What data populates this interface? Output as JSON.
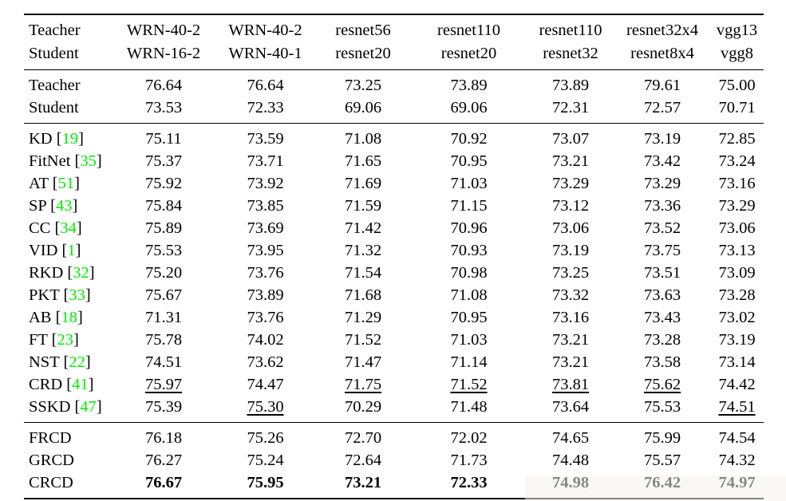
{
  "colors": {
    "citation_green": "#00ee00",
    "text": "#000000",
    "background": "#ffffff"
  },
  "table": {
    "header": {
      "row1_label": "Teacher",
      "row2_label": "Student",
      "columns": [
        {
          "teacher": "WRN-40-2",
          "student": "WRN-16-2"
        },
        {
          "teacher": "WRN-40-2",
          "student": "WRN-40-1"
        },
        {
          "teacher": "resnet56",
          "student": "resnet20"
        },
        {
          "teacher": "resnet110",
          "student": "resnet20"
        },
        {
          "teacher": "resnet110",
          "student": "resnet32"
        },
        {
          "teacher": "resnet32x4",
          "student": "resnet8x4"
        },
        {
          "teacher": "vgg13",
          "student": "vgg8"
        }
      ]
    },
    "baseline_rows": [
      {
        "label": "Teacher",
        "values": [
          "76.64",
          "76.64",
          "73.25",
          "73.89",
          "73.89",
          "79.61",
          "75.00"
        ]
      },
      {
        "label": "Student",
        "values": [
          "73.53",
          "72.33",
          "69.06",
          "69.06",
          "72.31",
          "72.57",
          "70.71"
        ]
      }
    ],
    "method_rows": [
      {
        "label": "KD",
        "cite": "19",
        "values": [
          "75.11",
          "73.59",
          "71.08",
          "70.92",
          "73.07",
          "73.19",
          "72.85"
        ],
        "underline": []
      },
      {
        "label": "FitNet",
        "cite": "35",
        "values": [
          "75.37",
          "73.71",
          "71.65",
          "70.95",
          "73.21",
          "73.42",
          "73.24"
        ],
        "underline": []
      },
      {
        "label": "AT",
        "cite": "51",
        "values": [
          "75.92",
          "73.92",
          "71.69",
          "71.03",
          "73.29",
          "73.29",
          "73.16"
        ],
        "underline": []
      },
      {
        "label": "SP",
        "cite": "43",
        "values": [
          "75.84",
          "73.85",
          "71.59",
          "71.15",
          "73.12",
          "73.36",
          "73.29"
        ],
        "underline": []
      },
      {
        "label": "CC",
        "cite": "34",
        "values": [
          "75.89",
          "73.69",
          "71.42",
          "70.96",
          "73.06",
          "73.52",
          "73.06"
        ],
        "underline": []
      },
      {
        "label": "VID",
        "cite": "1",
        "values": [
          "75.53",
          "73.95",
          "71.32",
          "70.93",
          "73.19",
          "73.75",
          "73.13"
        ],
        "underline": []
      },
      {
        "label": "RKD",
        "cite": "32",
        "values": [
          "75.20",
          "73.76",
          "71.54",
          "70.98",
          "73.25",
          "73.51",
          "73.09"
        ],
        "underline": []
      },
      {
        "label": "PKT",
        "cite": "33",
        "values": [
          "75.67",
          "73.89",
          "71.68",
          "71.08",
          "73.32",
          "73.63",
          "73.28"
        ],
        "underline": []
      },
      {
        "label": "AB",
        "cite": "18",
        "values": [
          "71.31",
          "73.76",
          "71.29",
          "70.95",
          "73.16",
          "73.43",
          "73.02"
        ],
        "underline": []
      },
      {
        "label": "FT",
        "cite": "23",
        "values": [
          "75.78",
          "74.02",
          "71.52",
          "71.03",
          "73.21",
          "73.28",
          "73.19"
        ],
        "underline": []
      },
      {
        "label": "NST",
        "cite": "22",
        "values": [
          "74.51",
          "73.62",
          "71.47",
          "71.14",
          "73.21",
          "73.58",
          "73.14"
        ],
        "underline": []
      },
      {
        "label": "CRD",
        "cite": "41",
        "values": [
          "75.97",
          "74.47",
          "71.75",
          "71.52",
          "73.81",
          "75.62",
          "74.42"
        ],
        "underline": [
          0,
          2,
          3,
          4,
          5
        ]
      },
      {
        "label": "SSKD",
        "cite": "47",
        "values": [
          "75.39",
          "75.30",
          "70.29",
          "71.48",
          "73.64",
          "75.53",
          "74.51"
        ],
        "underline": [
          1,
          6
        ]
      }
    ],
    "ours_rows": [
      {
        "label": "FRCD",
        "values": [
          "76.18",
          "75.26",
          "72.70",
          "72.02",
          "74.65",
          "75.99",
          "74.54"
        ],
        "bold": false
      },
      {
        "label": "GRCD",
        "values": [
          "76.27",
          "75.24",
          "72.64",
          "71.73",
          "74.48",
          "75.57",
          "74.32"
        ],
        "bold": false
      },
      {
        "label": "CRCD",
        "values": [
          "76.67",
          "75.95",
          "73.21",
          "72.33",
          "74.98",
          "76.42",
          "74.97"
        ],
        "bold": true
      }
    ]
  }
}
